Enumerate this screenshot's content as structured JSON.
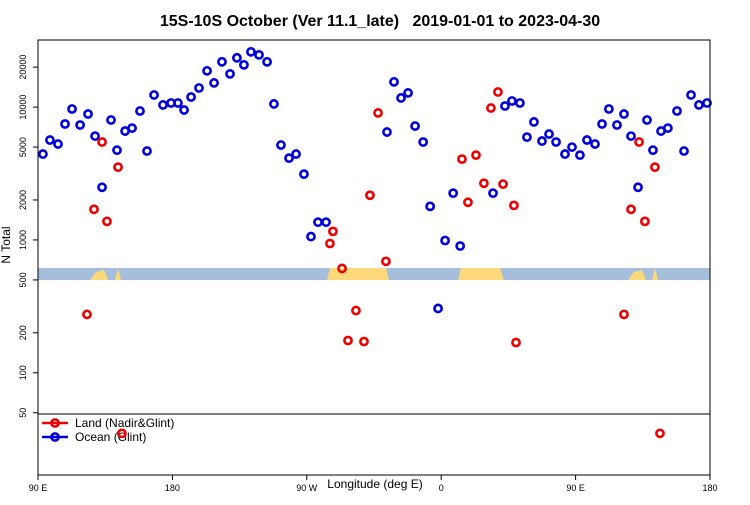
{
  "chart_data": {
    "type": "scatter",
    "title": "15S-10S October (Ver 11.1_late)   2019-01-01 to 2023-04-30",
    "xlabel": "Longitude (deg E)",
    "ylabel": "N Total",
    "xlim": [
      90,
      540
    ],
    "xticks": [
      {
        "value": 90,
        "label": "90 E"
      },
      180,
      {
        "value": 270,
        "label": "90 W"
      },
      {
        "value": 360,
        "label": "0"
      },
      {
        "value": 450,
        "label": "90 E"
      },
      {
        "value": 540,
        "label": "180"
      }
    ],
    "ylim": [
      17,
      32000
    ],
    "yticks": [
      50,
      100,
      200,
      500,
      1000,
      2000,
      5000,
      10000,
      20000
    ],
    "log_y": true,
    "legend": "bottom-left",
    "series": [
      {
        "name": "Ocean (Glint)",
        "color": "#0000dd",
        "x": [
          93.3,
          98.0,
          103.4,
          108.1,
          112.8,
          118.2,
          123.5,
          128.2,
          132.9,
          138.9,
          142.9,
          148.3,
          153.0,
          158.3,
          163.0,
          167.7,
          173.7,
          179.1,
          183.7,
          187.8,
          192.5,
          197.8,
          203.2,
          207.9,
          213.2,
          218.6,
          223.2,
          227.9,
          232.6,
          238.0,
          243.4,
          248.0,
          252.7,
          258.1,
          262.8,
          268.1,
          272.8,
          277.5,
          282.9,
          323.7,
          328.4,
          333.1,
          337.8,
          342.5,
          347.9,
          352.6,
          357.9,
          362.6,
          368.0,
          372.7,
          394.7,
          402.7,
          407.4,
          412.7,
          417.4,
          422.1,
          427.5,
          432.2,
          436.9,
          442.9,
          447.6,
          452.9,
          457.6,
          463.0,
          467.7,
          472.3,
          477.7,
          482.4,
          487.1,
          491.8,
          497.8,
          501.8,
          507.2,
          511.8,
          517.9,
          522.6,
          527.3,
          532.6,
          538.0
        ],
        "values": [
          4430,
          5650,
          5270,
          7460,
          9680,
          7330,
          8870,
          6050,
          2490,
          8000,
          4740,
          6600,
          6950,
          9350,
          4670,
          12340,
          10380,
          10740,
          10740,
          9510,
          11910,
          13930,
          18750,
          15210,
          21920,
          17780,
          23490,
          20800,
          26060,
          24720,
          21920,
          10560,
          5180,
          4130,
          4430,
          3130,
          1060,
          1360,
          1360,
          6490,
          15490,
          11720,
          12790,
          7200,
          5460,
          1790,
          305,
          990,
          2250,
          900,
          2250,
          10190,
          11120,
          10740,
          5940,
          7730,
          5550,
          6270,
          5460,
          4430,
          5000,
          4350,
          5650,
          5270,
          7460,
          9680,
          7330,
          8870,
          6050,
          2490,
          8000,
          4740,
          6600,
          6950,
          9350,
          4670,
          12340,
          10380,
          10740
        ]
      },
      {
        "name": "Land (Nadir&Glint)",
        "color": "#ee0000",
        "x": [
          122.8,
          127.5,
          132.9,
          136.2,
          143.6,
          146.2,
          285.5,
          287.5,
          293.6,
          297.6,
          302.9,
          308.3,
          312.3,
          317.7,
          323.0,
          373.9,
          377.9,
          383.3,
          388.6,
          393.3,
          398.0,
          401.4,
          408.7,
          410.1,
          482.4,
          487.1,
          492.5,
          496.4,
          503.1,
          506.5
        ],
        "values": [
          275,
          1700,
          5460,
          1380,
          3530,
          35,
          940,
          1160,
          610,
          175,
          294,
          172,
          2170,
          9040,
          690,
          4060,
          1920,
          4350,
          2670,
          9840,
          13000,
          2630,
          1820,
          169,
          275,
          1700,
          5460,
          1380,
          3530,
          35
        ]
      }
    ]
  }
}
